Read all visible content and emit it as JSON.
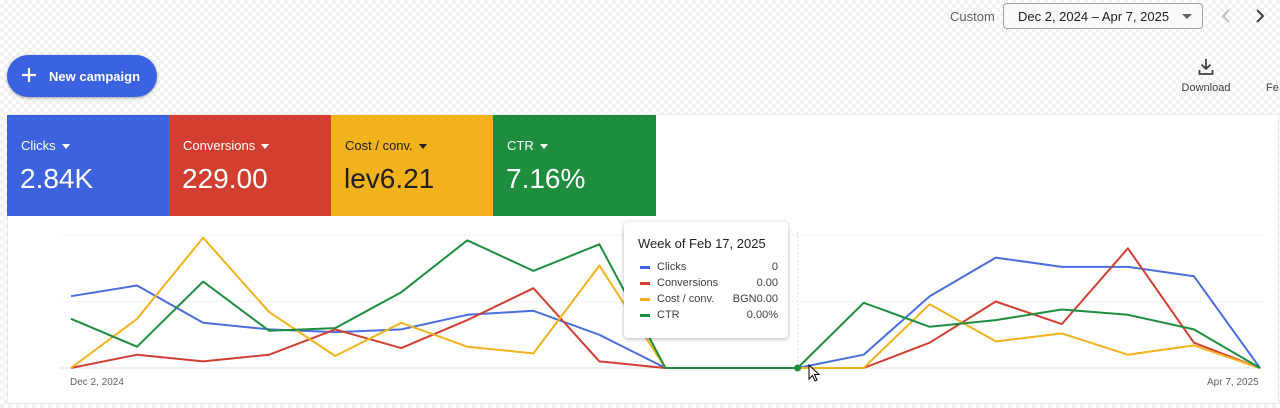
{
  "header": {
    "range_type": "Custom",
    "date_range": "Dec 2, 2024 – Apr 7, 2025"
  },
  "toolbar": {
    "new_campaign": "New campaign",
    "download": "Download",
    "cut_label": "Fe"
  },
  "scorecards": [
    {
      "label": "Clicks",
      "value": "2.84K",
      "color": "#3c63dd"
    },
    {
      "label": "Conversions",
      "value": "229.00",
      "color": "#d23f31"
    },
    {
      "label": "Cost / conv.",
      "value": "lev6.21",
      "color": "#f2b21b"
    },
    {
      "label": "CTR",
      "value": "7.16%",
      "color": "#1e8e3e"
    }
  ],
  "tooltip": {
    "title": "Week of Feb 17, 2025",
    "rows": [
      {
        "name": "Clicks",
        "value": "0",
        "color": "#3c63dd"
      },
      {
        "name": "Conversions",
        "value": "0.00",
        "color": "#d23f31"
      },
      {
        "name": "Cost / conv.",
        "value": "BGN0.00",
        "color": "#f2b21b"
      },
      {
        "name": "CTR",
        "value": "0.00%",
        "color": "#1e8e3e"
      }
    ]
  },
  "chart_data": {
    "type": "line",
    "x_start_label": "Dec 2, 2024",
    "x_end_label": "Apr 7, 2025",
    "ylim": [
      0,
      100
    ],
    "grid": true,
    "x": [
      "Dec 2",
      "Dec 9",
      "Dec 16",
      "Dec 23",
      "Dec 30",
      "Jan 6",
      "Jan 13",
      "Jan 20",
      "Jan 27",
      "Feb 3",
      "Feb 10",
      "Feb 17",
      "Feb 24",
      "Mar 3",
      "Mar 10",
      "Mar 17",
      "Mar 24",
      "Mar 31",
      "Apr 7"
    ],
    "series": [
      {
        "name": "Clicks",
        "color": "#4a6ee0",
        "values": [
          54,
          62,
          34,
          29,
          27,
          29,
          40,
          43,
          25,
          0,
          0,
          0,
          10,
          54,
          83,
          76,
          76,
          69,
          0
        ]
      },
      {
        "name": "Conversions",
        "color": "#d23f31",
        "values": [
          0,
          10,
          5,
          10,
          29,
          15,
          36,
          60,
          5,
          0,
          0,
          0,
          0,
          19,
          50,
          33,
          90,
          19,
          0
        ]
      },
      {
        "name": "Cost / conv.",
        "color": "#f2b21b",
        "values": [
          0,
          37,
          98,
          42,
          9,
          34,
          16,
          11,
          77,
          0,
          0,
          0,
          0,
          48,
          20,
          26,
          10,
          17,
          0
        ]
      },
      {
        "name": "CTR",
        "color": "#1e8e3e",
        "values": [
          37,
          16,
          65,
          28,
          30,
          57,
          96,
          73,
          93,
          0,
          0,
          0,
          49,
          31,
          36,
          44,
          40,
          29,
          0
        ]
      }
    ]
  }
}
